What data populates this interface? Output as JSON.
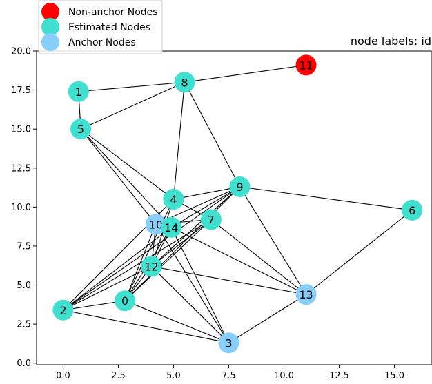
{
  "chart_data": {
    "type": "network-graph",
    "title": "node labels: id",
    "xlim": [
      -1.2,
      16.7
    ],
    "ylim": [
      -0.1,
      20.0
    ],
    "x_ticks": [
      "0.0",
      "2.5",
      "5.0",
      "7.5",
      "10.0",
      "12.5",
      "15.0"
    ],
    "y_ticks": [
      "0.0",
      "2.5",
      "5.0",
      "7.5",
      "10.0",
      "12.5",
      "15.0",
      "17.5",
      "20.0"
    ],
    "x_tick_values": [
      0,
      2.5,
      5,
      7.5,
      10,
      12.5,
      15
    ],
    "y_tick_values": [
      0,
      2.5,
      5,
      7.5,
      10,
      12.5,
      15,
      17.5,
      20
    ],
    "grid": false,
    "legend_placement": "top-left, outside axes",
    "legend": [
      {
        "label": "Non-anchor Nodes",
        "color": "#ff0000"
      },
      {
        "label": "Estimated Nodes",
        "color": "#40e0d0"
      },
      {
        "label": "Anchor Nodes",
        "color": "#87cefa"
      }
    ],
    "colors": {
      "non_anchor": "#ff0000",
      "estimated": "#40e0d0",
      "anchor": "#87cefa",
      "edge": "#000000"
    },
    "nodes": [
      {
        "id": "0",
        "x": 2.8,
        "y": 4.0,
        "kind": "estimated"
      },
      {
        "id": "1",
        "x": 0.7,
        "y": 17.4,
        "kind": "estimated"
      },
      {
        "id": "2",
        "x": 0.0,
        "y": 3.4,
        "kind": "estimated"
      },
      {
        "id": "3",
        "x": 7.5,
        "y": 1.3,
        "kind": "anchor"
      },
      {
        "id": "4",
        "x": 5.0,
        "y": 10.5,
        "kind": "estimated"
      },
      {
        "id": "5",
        "x": 0.8,
        "y": 15.0,
        "kind": "estimated"
      },
      {
        "id": "6",
        "x": 15.8,
        "y": 9.8,
        "kind": "estimated"
      },
      {
        "id": "7",
        "x": 6.7,
        "y": 9.2,
        "kind": "estimated"
      },
      {
        "id": "8",
        "x": 5.5,
        "y": 18.0,
        "kind": "estimated"
      },
      {
        "id": "9",
        "x": 8.0,
        "y": 11.3,
        "kind": "estimated"
      },
      {
        "id": "10",
        "x": 4.2,
        "y": 8.9,
        "kind": "anchor"
      },
      {
        "id": "11",
        "x": 11.0,
        "y": 19.1,
        "kind": "non-anchor"
      },
      {
        "id": "12",
        "x": 4.0,
        "y": 6.2,
        "kind": "estimated"
      },
      {
        "id": "13",
        "x": 11.0,
        "y": 4.4,
        "kind": "anchor"
      },
      {
        "id": "14",
        "x": 4.9,
        "y": 8.7,
        "kind": "estimated"
      }
    ],
    "edges": [
      [
        "1",
        "8"
      ],
      [
        "1",
        "5"
      ],
      [
        "5",
        "8"
      ],
      [
        "8",
        "11"
      ],
      [
        "8",
        "4"
      ],
      [
        "8",
        "9"
      ],
      [
        "5",
        "4"
      ],
      [
        "5",
        "10"
      ],
      [
        "5",
        "14"
      ],
      [
        "4",
        "9"
      ],
      [
        "4",
        "7"
      ],
      [
        "4",
        "12"
      ],
      [
        "4",
        "0"
      ],
      [
        "4",
        "2"
      ],
      [
        "9",
        "6"
      ],
      [
        "9",
        "13"
      ],
      [
        "9",
        "14"
      ],
      [
        "9",
        "12"
      ],
      [
        "9",
        "0"
      ],
      [
        "9",
        "10"
      ],
      [
        "9",
        "2"
      ],
      [
        "6",
        "13"
      ],
      [
        "7",
        "13"
      ],
      [
        "7",
        "0"
      ],
      [
        "7",
        "2"
      ],
      [
        "7",
        "12"
      ],
      [
        "7",
        "10"
      ],
      [
        "10",
        "0"
      ],
      [
        "10",
        "12"
      ],
      [
        "10",
        "3"
      ],
      [
        "14",
        "12"
      ],
      [
        "14",
        "2"
      ],
      [
        "14",
        "13"
      ],
      [
        "14",
        "3"
      ],
      [
        "14",
        "0"
      ],
      [
        "12",
        "2"
      ],
      [
        "12",
        "13"
      ],
      [
        "12",
        "3"
      ],
      [
        "12",
        "0"
      ],
      [
        "2",
        "0"
      ],
      [
        "2",
        "3"
      ],
      [
        "0",
        "3"
      ],
      [
        "3",
        "13"
      ]
    ]
  }
}
